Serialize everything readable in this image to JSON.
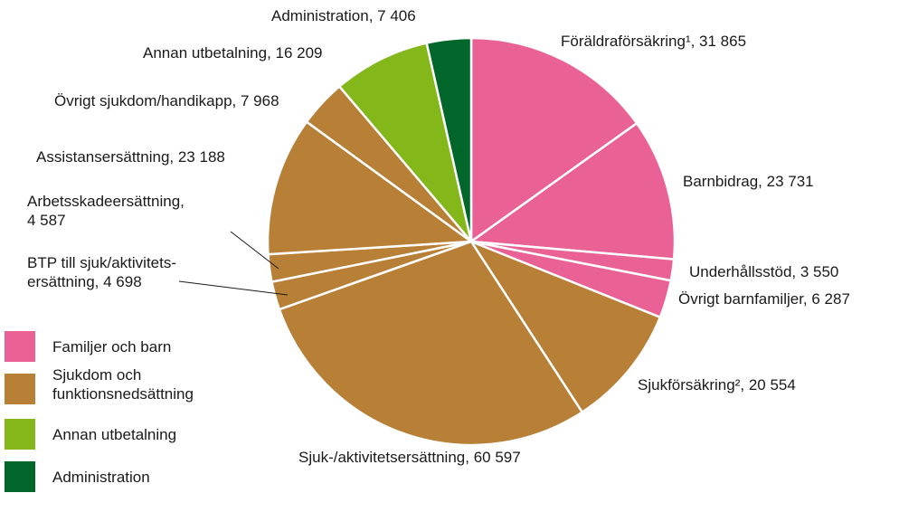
{
  "chart_data": {
    "type": "pie",
    "labels": [
      [
        "Föräldraförsäkring¹, 31 865"
      ],
      [
        "Barnbidrag, 23 731"
      ],
      [
        "Underhållsstöd, 3 550"
      ],
      [
        "Övrigt barnfamiljer, 6 287"
      ],
      [
        "Sjukförsäkring², 20 554"
      ],
      [
        "Sjuk-/aktivitetsersättning, 60 597"
      ],
      [
        "BTP till sjuk/aktivitets-",
        "ersättning, 4 698"
      ],
      [
        "Arbetsskadeersättning,",
        "4 587"
      ],
      [
        "Assistansersättning, 23 188"
      ],
      [
        "Övrigt sjukdom/handikapp, 7 968"
      ],
      [
        "Annan utbetalning, 16 209"
      ],
      [
        "Administration, 7 406"
      ]
    ],
    "values": [
      31865,
      23731,
      3550,
      6287,
      20554,
      60597,
      4698,
      4587,
      23188,
      7968,
      16209,
      7406
    ],
    "colors": [
      "#e96195",
      "#e96195",
      "#e96195",
      "#e96195",
      "#b87f37",
      "#b87f37",
      "#b87f37",
      "#b87f37",
      "#b87f37",
      "#b87f37",
      "#84b71a",
      "#006629"
    ],
    "legend": [
      {
        "name": [
          "Familjer och barn"
        ],
        "color": "#e96195"
      },
      {
        "name": [
          "Sjukdom och",
          "funktionsnedsättning"
        ],
        "color": "#b87f37"
      },
      {
        "name": [
          "Annan utbetalning"
        ],
        "color": "#84b71a"
      },
      {
        "name": [
          "Administration"
        ],
        "color": "#006629"
      }
    ],
    "legend_position": "lower left"
  }
}
